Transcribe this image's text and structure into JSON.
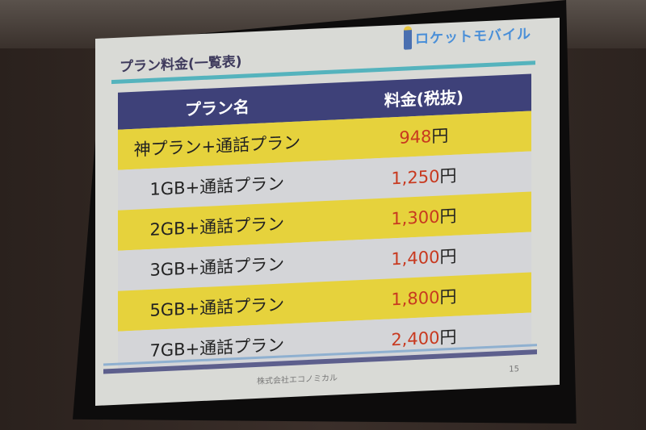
{
  "slide": {
    "title": "プラン料金(一覧表)",
    "logo_text": "ロケットモバイル",
    "table": {
      "headers": [
        "プラン名",
        "料金(税抜)"
      ],
      "rows": [
        {
          "plan": "神プラン+通話プラン",
          "price": "948",
          "unit": "円"
        },
        {
          "plan": "1GB+通話プラン",
          "price": "1,250",
          "unit": "円"
        },
        {
          "plan": "2GB+通話プラン",
          "price": "1,300",
          "unit": "円"
        },
        {
          "plan": "3GB+通話プラン",
          "price": "1,400",
          "unit": "円"
        },
        {
          "plan": "5GB+通話プラン",
          "price": "1,800",
          "unit": "円"
        },
        {
          "plan": "7GB+通話プラン",
          "price": "2,400",
          "unit": "円"
        }
      ]
    },
    "footer": "株式会社エコノミカル",
    "page_number": "15"
  },
  "colors": {
    "header": "#3e4179",
    "yellow_row": "#e6d23c",
    "gray_row": "#d4d5d8",
    "price": "#c8391f",
    "accent_line": "#55b3bd"
  }
}
